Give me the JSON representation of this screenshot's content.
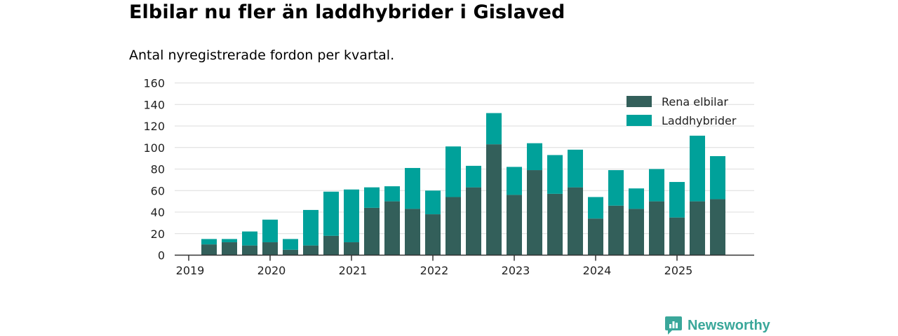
{
  "title": "Elbilar nu fler än laddhybrider i Gislaved",
  "subtitle": "Antal nyregistrerade fordon per kvartal.",
  "brand": {
    "name": "Newsworthy",
    "color": "#3aa79a",
    "icon": "newsworthy-logo-icon"
  },
  "chart_data": {
    "type": "bar",
    "stacked": true,
    "title": "Elbilar nu fler än laddhybrider i Gislaved",
    "subtitle": "Antal nyregistrerade fordon per kvartal.",
    "xlabel": "",
    "ylabel": "",
    "ylim": [
      0,
      160
    ],
    "y_ticks": [
      0,
      20,
      40,
      60,
      80,
      100,
      120,
      140,
      160
    ],
    "grid": true,
    "legend_position": "top-right",
    "x_tick_labels": [
      "2019",
      "2020",
      "2021",
      "2022",
      "2023",
      "2024",
      "2025"
    ],
    "categories": [
      "2019 Q1",
      "2019 Q2",
      "2019 Q3",
      "2019 Q4",
      "2020 Q1",
      "2020 Q2",
      "2020 Q3",
      "2020 Q4",
      "2021 Q1",
      "2021 Q2",
      "2021 Q3",
      "2021 Q4",
      "2022 Q1",
      "2022 Q2",
      "2022 Q3",
      "2022 Q4",
      "2023 Q1",
      "2023 Q2",
      "2023 Q3",
      "2023 Q4",
      "2024 Q1",
      "2024 Q2",
      "2024 Q3",
      "2024 Q4",
      "2025 Q1",
      "2025 Q2",
      "2025 Q3"
    ],
    "series": [
      {
        "name": "Rena elbilar",
        "color": "#335f5a",
        "values": [
          0,
          10,
          12,
          9,
          12,
          5,
          9,
          18,
          12,
          44,
          50,
          43,
          38,
          54,
          63,
          103,
          56,
          79,
          57,
          63,
          34,
          46,
          43,
          50,
          35,
          50,
          52
        ]
      },
      {
        "name": "Laddhybrider",
        "color": "#00a19a",
        "values": [
          0,
          5,
          3,
          13,
          21,
          10,
          33,
          41,
          49,
          19,
          14,
          38,
          22,
          47,
          20,
          29,
          26,
          25,
          36,
          35,
          20,
          33,
          19,
          30,
          33,
          61,
          40
        ]
      }
    ]
  }
}
